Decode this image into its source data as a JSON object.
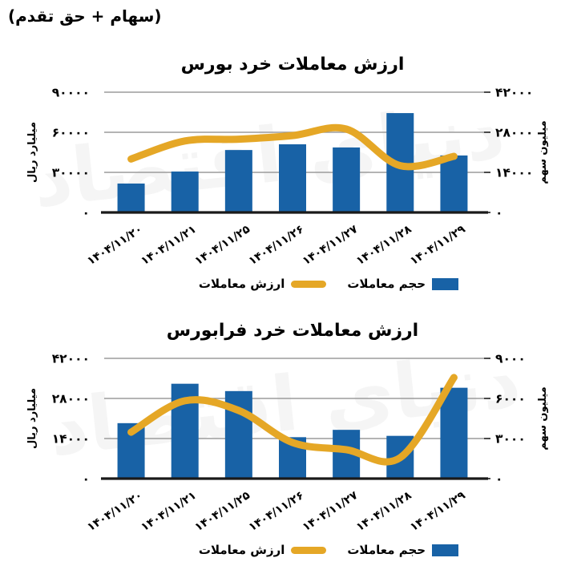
{
  "page": {
    "corner_note": "(سهام + حق تقدم)",
    "watermark_text": "دنیای اقتصاد"
  },
  "colors": {
    "bar": "#1862A6",
    "line": "#E5A726",
    "grid": "#9B9B9B",
    "axis": "#1A1A1A",
    "tick_dash": "#4A4A4A",
    "text": "#000000"
  },
  "legend": {
    "bar_label": "حجم معاملات",
    "line_label": "ارزش معاملات"
  },
  "chart_data": [
    {
      "type": "bar+line",
      "title": "ارزش معاملات خرد بورس",
      "categories": [
        "۱۴۰۴/۱۱/۲۰",
        "۱۴۰۴/۱۱/۲۱",
        "۱۴۰۴/۱۱/۲۵",
        "۱۴۰۴/۱۱/۲۶",
        "۱۴۰۴/۱۱/۲۷",
        "۱۴۰۴/۱۱/۲۸",
        "۱۴۰۴/۱۱/۲۹"
      ],
      "left_axis": {
        "label": "میلیارد ریال",
        "max": 90000,
        "tick_values": [
          90000,
          60000,
          30000,
          0
        ],
        "tick_labels": [
          "۹۰۰۰۰",
          "۶۰۰۰۰",
          "۳۰۰۰۰",
          "۰"
        ]
      },
      "right_axis": {
        "label": "میلیون سهم",
        "max": 42000,
        "tick_values": [
          42000,
          28000,
          14000,
          0
        ],
        "tick_labels": [
          "۴۲۰۰۰",
          "۲۸۰۰۰",
          "۱۴۰۰۰",
          "۰"
        ]
      },
      "series": [
        {
          "name": "حجم معاملات",
          "kind": "bar",
          "axis": "right",
          "values": [
            10100,
            14300,
            21800,
            23800,
            22700,
            34700,
            19900
          ]
        },
        {
          "name": "ارزش معاملات",
          "kind": "line",
          "axis": "left",
          "values": [
            40000,
            53500,
            54800,
            57500,
            62400,
            35000,
            42000
          ]
        }
      ],
      "grid": true,
      "legend_position": "bottom"
    },
    {
      "type": "bar+line",
      "title": "ارزش معاملات خرد فرابورس",
      "categories": [
        "۱۴۰۴/۱۱/۲۰",
        "۱۴۰۴/۱۱/۲۱",
        "۱۴۰۴/۱۱/۲۵",
        "۱۴۰۴/۱۱/۲۶",
        "۱۴۰۴/۱۱/۲۷",
        "۱۴۰۴/۱۱/۲۸",
        "۱۴۰۴/۱۱/۲۹"
      ],
      "left_axis": {
        "label": "میلیارد ریال",
        "max": 42000,
        "tick_values": [
          42000,
          28000,
          14000,
          0
        ],
        "tick_labels": [
          "۴۲۰۰۰",
          "۲۸۰۰۰",
          "۱۴۰۰۰",
          "۰"
        ]
      },
      "right_axis": {
        "label": "میلیون سهم",
        "max": 9000,
        "tick_values": [
          9000,
          6000,
          3000,
          0
        ],
        "tick_labels": [
          "۹۰۰۰",
          "۶۰۰۰",
          "۳۰۰۰",
          "۰"
        ]
      },
      "series": [
        {
          "name": "حجم معاملات",
          "kind": "bar",
          "axis": "right",
          "values": [
            4150,
            7100,
            6550,
            3100,
            3650,
            3200,
            6800
          ]
        },
        {
          "name": "ارزش معاملات",
          "kind": "line",
          "axis": "left",
          "values": [
            16200,
            27200,
            23800,
            12600,
            10100,
            7300,
            35300
          ]
        }
      ],
      "grid": true,
      "legend_position": "bottom"
    }
  ]
}
